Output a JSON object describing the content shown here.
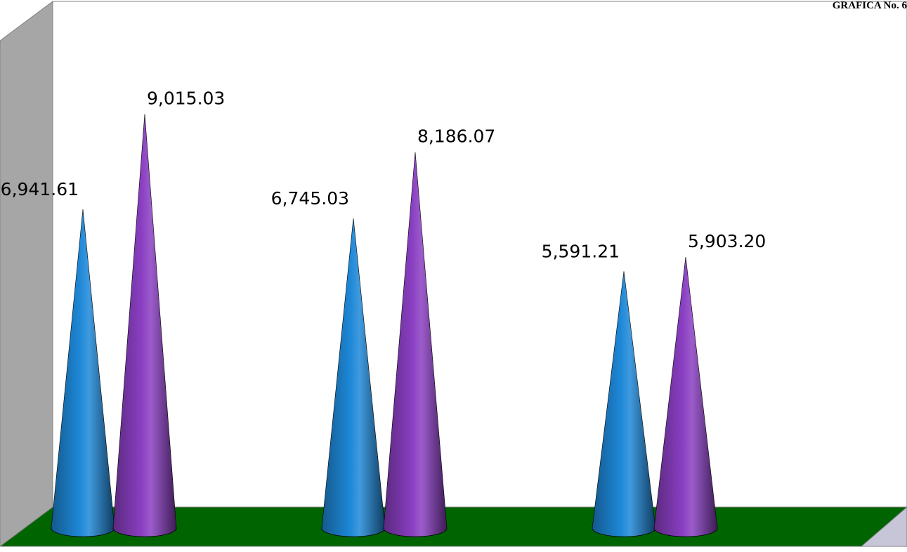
{
  "header": {
    "corner_label": "GRAFICA No. 6"
  },
  "chart_data": {
    "type": "bar",
    "style": "3d-cone",
    "categories": [
      "",
      "",
      ""
    ],
    "series": [
      {
        "values": [
          6941.61,
          6745.03,
          5591.21
        ],
        "color": "#1e88d8"
      },
      {
        "values": [
          9015.03,
          8186.07,
          5903.2
        ],
        "color": "#8a3fc2"
      }
    ],
    "data_labels": [
      [
        "6,941.61",
        "6,745.03",
        "5,591.21"
      ],
      [
        "9,015.03",
        "8,186.07",
        "5,903.20"
      ]
    ],
    "ylim": [
      0,
      10000
    ],
    "grid": false,
    "legend": "none",
    "colors": {
      "back_wall": "#ffffff",
      "side_wall": "#a6a6a6",
      "floor": "#006400",
      "outline": "#808080"
    }
  }
}
